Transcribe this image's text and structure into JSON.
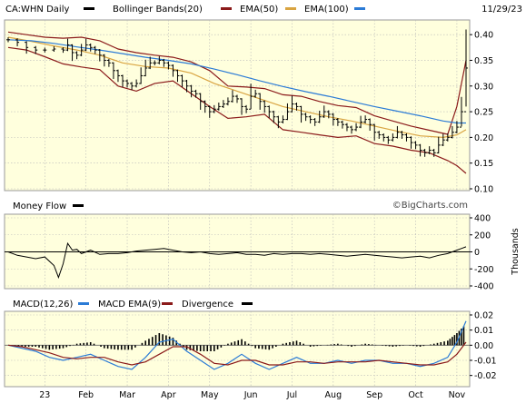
{
  "header": {
    "symbol": "CA:WHN Daily",
    "bollinger": "Bollinger Bands(20)",
    "ema50": "EMA(50)",
    "ema100": "EMA(100)",
    "date": "11/29/23"
  },
  "colors": {
    "price": "#000000",
    "bollinger": "#8b1a1a",
    "ema50": "#d9a441",
    "ema100": "#2b7bd6",
    "panel_bg": "#ffffdd",
    "money_flow": "#000000",
    "macd": "#2b7bd6",
    "macd_signal": "#8b1a1a",
    "divergence": "#000000"
  },
  "money_flow": {
    "title": "Money Flow",
    "watermark": "©BigCharts.com",
    "ylabel": "Thousands"
  },
  "macd": {
    "title": "MACD(12,26)",
    "signal_label": "MACD EMA(9)",
    "divergence_label": "Divergence"
  },
  "chart_data": [
    {
      "type": "line",
      "id": "price",
      "x_labels": [
        "23",
        "Feb",
        "Mar",
        "Apr",
        "May",
        "Jun",
        "Jul",
        "Aug",
        "Sep",
        "Oct",
        "Nov"
      ],
      "y_ticks": [
        "0.40",
        "0.35",
        "0.30",
        "0.25",
        "0.20",
        "0.15",
        "0.10"
      ],
      "ylim": [
        0.1,
        0.425
      ],
      "series": [
        {
          "name": "CA:WHN Daily",
          "style": "ohlc",
          "x": [
            0,
            2,
            4,
            6,
            8,
            10,
            12,
            13,
            14,
            15,
            16,
            17,
            18,
            19,
            20,
            21,
            22,
            23,
            24,
            25,
            26,
            27,
            28,
            29,
            30,
            31,
            32,
            33,
            34,
            35,
            36,
            37,
            38,
            39,
            40,
            41,
            42,
            43,
            44,
            45,
            46,
            47,
            48,
            49,
            50,
            51,
            52,
            53,
            54,
            55,
            56,
            57,
            58,
            59,
            60,
            61,
            62,
            63,
            64,
            65,
            66,
            67,
            68,
            69,
            70,
            71,
            72,
            73,
            74,
            75,
            76,
            77,
            78,
            79,
            80,
            81,
            82,
            83,
            84,
            85,
            86,
            87,
            88,
            89,
            90,
            91,
            92,
            93,
            94,
            95,
            96,
            97,
            98,
            99,
            100
          ],
          "values": [
            0.39,
            0.385,
            0.375,
            0.37,
            0.37,
            0.372,
            0.37,
            0.38,
            0.365,
            0.36,
            0.37,
            0.38,
            0.375,
            0.37,
            0.36,
            0.35,
            0.345,
            0.33,
            0.32,
            0.31,
            0.305,
            0.3,
            0.305,
            0.32,
            0.335,
            0.345,
            0.345,
            0.35,
            0.345,
            0.34,
            0.33,
            0.32,
            0.31,
            0.3,
            0.29,
            0.285,
            0.27,
            0.26,
            0.25,
            0.255,
            0.26,
            0.265,
            0.27,
            0.28,
            0.275,
            0.26,
            0.255,
            0.28,
            0.285,
            0.27,
            0.26,
            0.25,
            0.24,
            0.23,
            0.235,
            0.25,
            0.265,
            0.26,
            0.245,
            0.24,
            0.235,
            0.23,
            0.24,
            0.25,
            0.245,
            0.235,
            0.23,
            0.225,
            0.22,
            0.215,
            0.22,
            0.23,
            0.235,
            0.225,
            0.21,
            0.205,
            0.2,
            0.195,
            0.2,
            0.21,
            0.205,
            0.2,
            0.19,
            0.185,
            0.175,
            0.17,
            0.175,
            0.17,
            0.185,
            0.195,
            0.2,
            0.21,
            0.22,
            0.25,
            0.335
          ]
        },
        {
          "name": "Bollinger Bands(20) upper",
          "x": [
            0,
            4,
            8,
            12,
            16,
            20,
            24,
            28,
            32,
            36,
            40,
            44,
            48,
            52,
            56,
            60,
            64,
            68,
            72,
            76,
            80,
            84,
            88,
            92,
            96,
            98,
            100
          ],
          "values": [
            0.405,
            0.4,
            0.395,
            0.393,
            0.395,
            0.388,
            0.372,
            0.365,
            0.36,
            0.356,
            0.347,
            0.33,
            0.3,
            0.298,
            0.295,
            0.283,
            0.28,
            0.27,
            0.262,
            0.258,
            0.242,
            0.232,
            0.222,
            0.214,
            0.206,
            0.26,
            0.35
          ]
        },
        {
          "name": "Bollinger Bands(20) lower",
          "x": [
            0,
            4,
            8,
            12,
            16,
            20,
            24,
            28,
            32,
            36,
            40,
            44,
            48,
            52,
            56,
            60,
            64,
            68,
            72,
            76,
            80,
            84,
            88,
            92,
            96,
            98,
            100
          ],
          "values": [
            0.375,
            0.37,
            0.357,
            0.343,
            0.337,
            0.332,
            0.3,
            0.29,
            0.305,
            0.31,
            0.285,
            0.26,
            0.237,
            0.24,
            0.245,
            0.215,
            0.21,
            0.205,
            0.2,
            0.203,
            0.188,
            0.183,
            0.175,
            0.17,
            0.155,
            0.145,
            0.13
          ]
        },
        {
          "name": "EMA(50)",
          "x": [
            0,
            5,
            10,
            15,
            20,
            25,
            30,
            35,
            40,
            45,
            50,
            55,
            60,
            65,
            70,
            75,
            80,
            85,
            90,
            95,
            98,
            100
          ],
          "values": [
            0.395,
            0.387,
            0.378,
            0.37,
            0.36,
            0.345,
            0.338,
            0.335,
            0.325,
            0.305,
            0.29,
            0.275,
            0.26,
            0.25,
            0.24,
            0.232,
            0.222,
            0.212,
            0.203,
            0.2,
            0.205,
            0.215
          ]
        },
        {
          "name": "EMA(100)",
          "x": [
            0,
            5,
            10,
            15,
            20,
            25,
            30,
            35,
            40,
            45,
            50,
            55,
            60,
            65,
            70,
            75,
            80,
            85,
            90,
            95,
            98,
            100
          ],
          "values": [
            0.39,
            0.388,
            0.383,
            0.376,
            0.37,
            0.363,
            0.356,
            0.35,
            0.343,
            0.333,
            0.322,
            0.31,
            0.299,
            0.289,
            0.28,
            0.27,
            0.26,
            0.251,
            0.242,
            0.232,
            0.228,
            0.228
          ]
        }
      ]
    },
    {
      "type": "line",
      "id": "money_flow",
      "y_ticks": [
        "400",
        "200",
        "0",
        "-200",
        "-400"
      ],
      "ylim": [
        -400,
        400
      ],
      "series": [
        {
          "name": "Money Flow",
          "x": [
            0,
            2,
            4,
            6,
            8,
            10,
            11,
            12,
            13,
            14,
            15,
            16,
            18,
            20,
            22,
            24,
            26,
            28,
            30,
            32,
            34,
            36,
            38,
            40,
            42,
            44,
            46,
            48,
            50,
            52,
            54,
            56,
            58,
            60,
            62,
            64,
            66,
            68,
            70,
            72,
            74,
            76,
            78,
            80,
            82,
            84,
            86,
            88,
            90,
            92,
            94,
            96,
            98,
            100
          ],
          "values": [
            0,
            -40,
            -60,
            -80,
            -60,
            -160,
            -300,
            -140,
            100,
            20,
            30,
            -20,
            20,
            -30,
            -20,
            -20,
            -10,
            10,
            20,
            30,
            40,
            20,
            0,
            -10,
            0,
            -20,
            -30,
            -20,
            -10,
            -30,
            -30,
            -40,
            -20,
            -30,
            -20,
            -20,
            -30,
            -20,
            -30,
            -40,
            -50,
            -40,
            -30,
            -40,
            -50,
            -60,
            -70,
            -60,
            -50,
            -70,
            -40,
            -20,
            20,
            60
          ]
        }
      ]
    },
    {
      "type": "line",
      "id": "macd",
      "y_ticks": [
        "0.02",
        "0.01",
        "0.00",
        "-0.01",
        "-0.02"
      ],
      "ylim": [
        -0.025,
        0.02
      ],
      "series": [
        {
          "name": "MACD(12,26)",
          "x": [
            0,
            3,
            6,
            9,
            12,
            15,
            18,
            21,
            24,
            27,
            30,
            33,
            36,
            39,
            42,
            45,
            48,
            51,
            54,
            57,
            60,
            63,
            66,
            69,
            72,
            75,
            78,
            81,
            84,
            87,
            90,
            93,
            96,
            98,
            100
          ],
          "values": [
            0.0,
            -0.002,
            -0.004,
            -0.008,
            -0.01,
            -0.008,
            -0.006,
            -0.01,
            -0.014,
            -0.016,
            -0.008,
            0.002,
            0.004,
            -0.004,
            -0.01,
            -0.016,
            -0.012,
            -0.006,
            -0.012,
            -0.016,
            -0.012,
            -0.008,
            -0.012,
            -0.012,
            -0.01,
            -0.012,
            -0.01,
            -0.01,
            -0.012,
            -0.012,
            -0.014,
            -0.012,
            -0.008,
            0.002,
            0.016
          ]
        },
        {
          "name": "MACD EMA(9)",
          "x": [
            0,
            3,
            6,
            9,
            12,
            15,
            18,
            21,
            24,
            27,
            30,
            33,
            36,
            39,
            42,
            45,
            48,
            51,
            54,
            57,
            60,
            63,
            66,
            69,
            72,
            75,
            78,
            81,
            84,
            87,
            90,
            93,
            96,
            98,
            100
          ],
          "values": [
            0.0,
            -0.001,
            -0.003,
            -0.005,
            -0.008,
            -0.009,
            -0.008,
            -0.008,
            -0.011,
            -0.013,
            -0.011,
            -0.006,
            -0.001,
            -0.001,
            -0.006,
            -0.012,
            -0.013,
            -0.01,
            -0.01,
            -0.013,
            -0.013,
            -0.011,
            -0.011,
            -0.012,
            -0.011,
            -0.011,
            -0.011,
            -0.01,
            -0.011,
            -0.012,
            -0.013,
            -0.013,
            -0.011,
            -0.006,
            0.002
          ]
        },
        {
          "name": "Divergence",
          "style": "histogram",
          "x": [
            0,
            3,
            6,
            9,
            12,
            15,
            18,
            21,
            24,
            27,
            30,
            33,
            36,
            39,
            42,
            45,
            48,
            51,
            54,
            57,
            60,
            63,
            66,
            69,
            72,
            75,
            78,
            81,
            84,
            87,
            90,
            93,
            96,
            98,
            100
          ],
          "values": [
            0.0,
            -0.001,
            -0.001,
            -0.003,
            -0.002,
            0.001,
            0.002,
            -0.002,
            -0.003,
            -0.003,
            0.003,
            0.008,
            0.005,
            -0.003,
            -0.004,
            -0.004,
            0.001,
            0.004,
            -0.002,
            -0.003,
            0.001,
            0.003,
            -0.001,
            0.0,
            0.001,
            -0.001,
            0.001,
            0.0,
            -0.001,
            0.0,
            -0.001,
            0.001,
            0.003,
            0.008,
            0.014
          ]
        }
      ]
    }
  ]
}
